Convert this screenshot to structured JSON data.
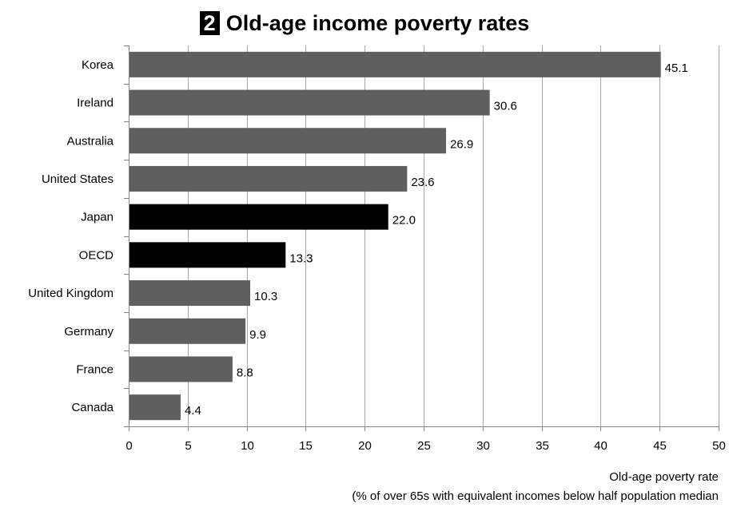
{
  "chart_title": {
    "number": "2",
    "text": "Old-age income poverty rates"
  },
  "chart_data": {
    "type": "bar",
    "orientation": "horizontal",
    "title": "Old-age income poverty rates",
    "categories": [
      "Korea",
      "Ireland",
      "Australia",
      "United States",
      "Japan",
      "OECD",
      "United Kingdom",
      "Germany",
      "France",
      "Canada"
    ],
    "values": [
      45.1,
      30.6,
      26.9,
      23.6,
      22.0,
      13.3,
      10.3,
      9.9,
      8.8,
      4.4
    ],
    "value_labels": [
      "45.1",
      "30.6",
      "26.9",
      "23.6",
      "22.0",
      "13.3",
      "10.3",
      "9.9",
      "8.8",
      "4.4"
    ],
    "highlighted": [
      "Japan",
      "OECD"
    ],
    "xlim": [
      0,
      50
    ],
    "xticks": [
      0,
      5,
      10,
      15,
      20,
      25,
      30,
      35,
      40,
      45,
      50
    ],
    "xlabel": [
      "Old-age poverty rate",
      "(% of over 65s with equivalent incomes below half population median"
    ],
    "ylabel": "",
    "grid": "vertical",
    "colors": {
      "bar": "#5f5f5f",
      "highlight": "#000000",
      "grid": "#a6a6a6"
    }
  }
}
